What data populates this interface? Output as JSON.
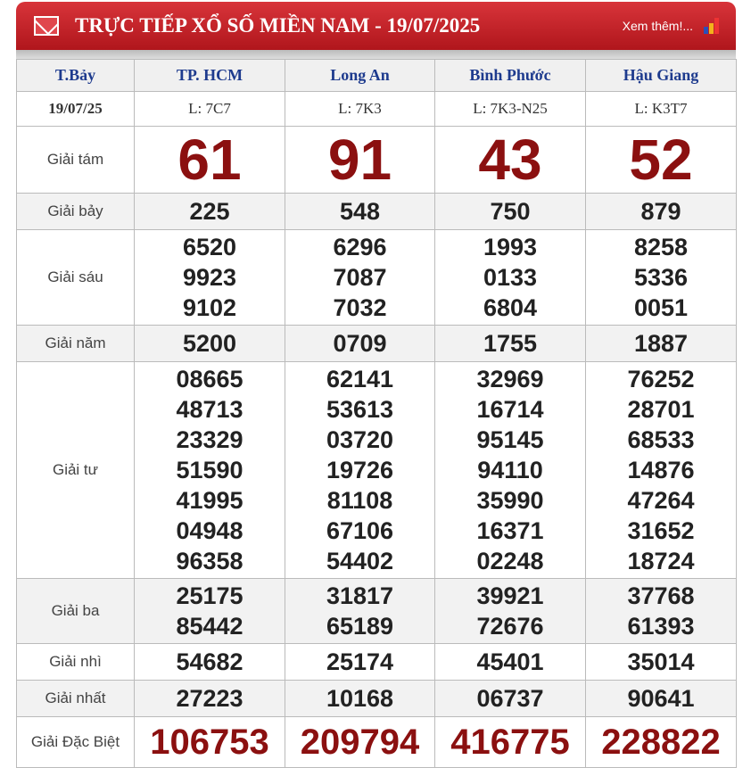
{
  "header": {
    "title": "TRỰC TIẾP XỔ SỐ MIỀN NAM - 19/07/2025",
    "more": "Xem thêm!..."
  },
  "day": "T.Bảy",
  "date": "19/07/25",
  "provinces": [
    {
      "name": "TP. HCM",
      "code": "L: 7C7"
    },
    {
      "name": "Long An",
      "code": "L: 7K3"
    },
    {
      "name": "Bình Phước",
      "code": "L: 7K3-N25"
    },
    {
      "name": "Hậu Giang",
      "code": "L: K3T7"
    }
  ],
  "prizes": [
    {
      "label": "Giải tám",
      "type": "big",
      "gray": false,
      "values": [
        [
          "61"
        ],
        [
          "91"
        ],
        [
          "43"
        ],
        [
          "52"
        ]
      ]
    },
    {
      "label": "Giải bảy",
      "type": "n",
      "gray": true,
      "values": [
        [
          "225"
        ],
        [
          "548"
        ],
        [
          "750"
        ],
        [
          "879"
        ]
      ]
    },
    {
      "label": "Giải sáu",
      "type": "n",
      "gray": false,
      "values": [
        [
          "6520",
          "9923",
          "9102"
        ],
        [
          "6296",
          "7087",
          "7032"
        ],
        [
          "1993",
          "0133",
          "6804"
        ],
        [
          "8258",
          "5336",
          "0051"
        ]
      ]
    },
    {
      "label": "Giải năm",
      "type": "n",
      "gray": true,
      "values": [
        [
          "5200"
        ],
        [
          "0709"
        ],
        [
          "1755"
        ],
        [
          "1887"
        ]
      ]
    },
    {
      "label": "Giải tư",
      "type": "n",
      "gray": false,
      "values": [
        [
          "08665",
          "48713",
          "23329",
          "51590",
          "41995",
          "04948",
          "96358"
        ],
        [
          "62141",
          "53613",
          "03720",
          "19726",
          "81108",
          "67106",
          "54402"
        ],
        [
          "32969",
          "16714",
          "95145",
          "94110",
          "35990",
          "16371",
          "02248"
        ],
        [
          "76252",
          "28701",
          "68533",
          "14876",
          "47264",
          "31652",
          "18724"
        ]
      ]
    },
    {
      "label": "Giải ba",
      "type": "n",
      "gray": true,
      "values": [
        [
          "25175",
          "85442"
        ],
        [
          "31817",
          "65189"
        ],
        [
          "39921",
          "72676"
        ],
        [
          "37768",
          "61393"
        ]
      ]
    },
    {
      "label": "Giải nhì",
      "type": "n",
      "gray": false,
      "values": [
        [
          "54682"
        ],
        [
          "25174"
        ],
        [
          "45401"
        ],
        [
          "35014"
        ]
      ]
    },
    {
      "label": "Giải nhất",
      "type": "n",
      "gray": true,
      "values": [
        [
          "27223"
        ],
        [
          "10168"
        ],
        [
          "06737"
        ],
        [
          "90641"
        ]
      ]
    },
    {
      "label": "Giải Đặc Biệt",
      "type": "db",
      "gray": false,
      "values": [
        [
          "106753"
        ],
        [
          "209794"
        ],
        [
          "416775"
        ],
        [
          "228822"
        ]
      ]
    }
  ]
}
